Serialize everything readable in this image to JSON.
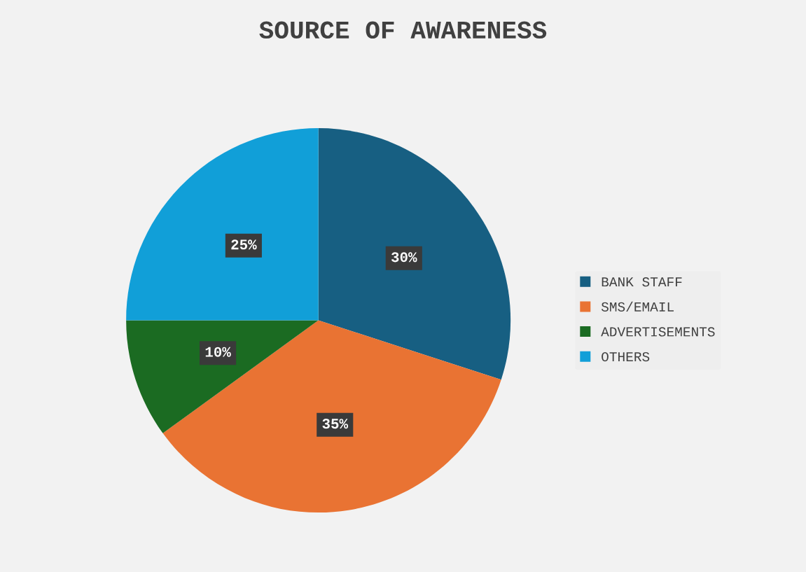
{
  "chart_data": {
    "type": "pie",
    "title": "SOURCE OF AWARENESS",
    "categories": [
      "BANK STAFF",
      "SMS/EMAIL",
      "ADVERTISEMENTS",
      "OTHERS"
    ],
    "values": [
      30,
      35,
      10,
      25
    ],
    "colors": [
      "#175f82",
      "#e97333",
      "#1b6b22",
      "#119fd8"
    ],
    "value_labels": [
      "30%",
      "35%",
      "10%",
      "25%"
    ],
    "legend": "right"
  }
}
